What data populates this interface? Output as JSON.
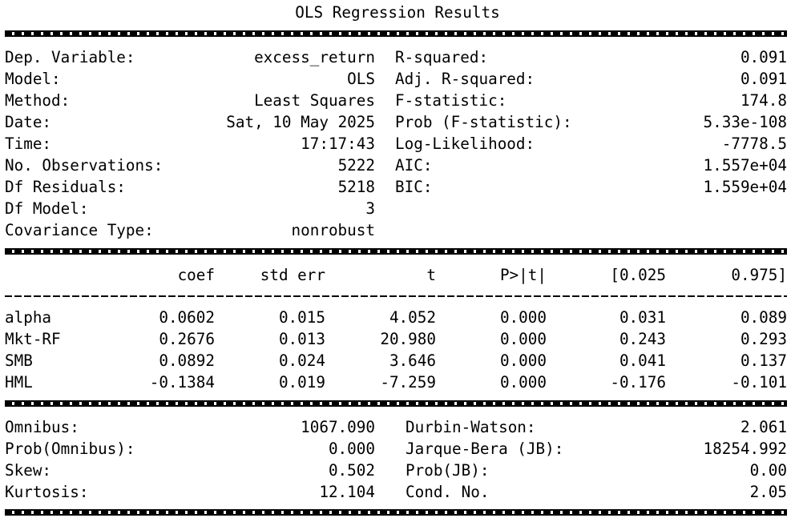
{
  "title": "OLS Regression Results",
  "top_left": [
    {
      "label": "Dep. Variable:",
      "value": "excess_return"
    },
    {
      "label": "Model:",
      "value": "OLS"
    },
    {
      "label": "Method:",
      "value": "Least Squares"
    },
    {
      "label": "Date:",
      "value": "Sat, 10 May 2025"
    },
    {
      "label": "Time:",
      "value": "17:17:43"
    },
    {
      "label": "No. Observations:",
      "value": "5222"
    },
    {
      "label": "Df Residuals:",
      "value": "5218"
    },
    {
      "label": "Df Model:",
      "value": "3"
    },
    {
      "label": "Covariance Type:",
      "value": "nonrobust"
    }
  ],
  "top_right": [
    {
      "label": "R-squared:",
      "value": "0.091"
    },
    {
      "label": "Adj. R-squared:",
      "value": "0.091"
    },
    {
      "label": "F-statistic:",
      "value": "174.8"
    },
    {
      "label": "Prob (F-statistic):",
      "value": "5.33e-108"
    },
    {
      "label": "Log-Likelihood:",
      "value": "-7778.5"
    },
    {
      "label": "AIC:",
      "value": "1.557e+04"
    },
    {
      "label": "BIC:",
      "value": "1.559e+04"
    }
  ],
  "coef_headers": [
    "coef",
    "std err",
    "t",
    "P>|t|",
    "[0.025",
    "0.975]"
  ],
  "coef_rows": [
    {
      "name": "alpha",
      "coef": "0.0602",
      "std_err": "0.015",
      "t": "4.052",
      "p": "0.000",
      "lo": "0.031",
      "hi": "0.089"
    },
    {
      "name": "Mkt-RF",
      "coef": "0.2676",
      "std_err": "0.013",
      "t": "20.980",
      "p": "0.000",
      "lo": "0.243",
      "hi": "0.293"
    },
    {
      "name": "SMB",
      "coef": "0.0892",
      "std_err": "0.024",
      "t": "3.646",
      "p": "0.000",
      "lo": "0.041",
      "hi": "0.137"
    },
    {
      "name": "HML",
      "coef": "-0.1384",
      "std_err": "0.019",
      "t": "-7.259",
      "p": "0.000",
      "lo": "-0.176",
      "hi": "-0.101"
    }
  ],
  "bottom_left": [
    {
      "label": "Omnibus:",
      "value": "1067.090"
    },
    {
      "label": "Prob(Omnibus):",
      "value": "0.000"
    },
    {
      "label": "Skew:",
      "value": "0.502"
    },
    {
      "label": "Kurtosis:",
      "value": "12.104"
    }
  ],
  "bottom_right": [
    {
      "label": "Durbin-Watson:",
      "value": "2.061"
    },
    {
      "label": "Jarque-Bera (JB):",
      "value": "18254.992"
    },
    {
      "label": "Prob(JB):",
      "value": "0.00"
    },
    {
      "label": "Cond. No.",
      "value": "2.05"
    }
  ]
}
